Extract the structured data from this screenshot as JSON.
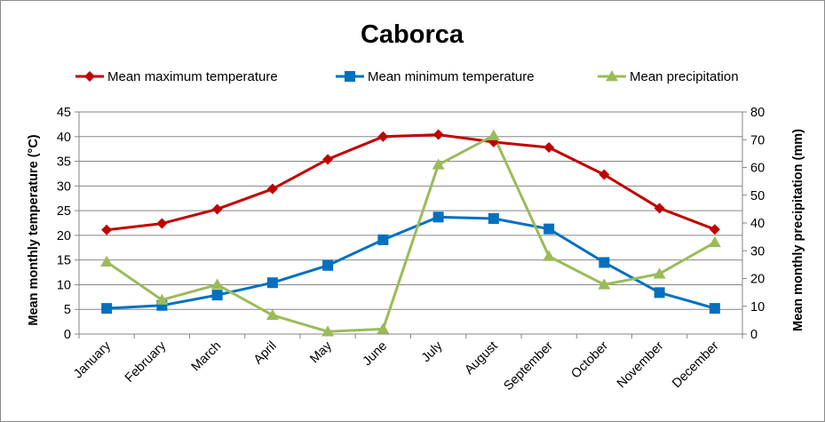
{
  "chart_data": {
    "type": "line",
    "title": "Caborca",
    "categories": [
      "January",
      "February",
      "March",
      "April",
      "May",
      "June",
      "July",
      "August",
      "September",
      "October",
      "November",
      "December"
    ],
    "ylabel_left": "Mean monthly temperature (°C)",
    "ylabel_right": "Mean monthly precipitation (mm)",
    "ylim_left": [
      0,
      45
    ],
    "yticks_left": [
      0,
      5,
      10,
      15,
      20,
      25,
      30,
      35,
      40,
      45
    ],
    "ylim_right": [
      0,
      80
    ],
    "yticks_right": [
      0,
      10,
      20,
      30,
      40,
      50,
      60,
      70,
      80
    ],
    "grid": true,
    "legend_position": "top",
    "series": [
      {
        "name": "Mean maximum temperature",
        "axis": "left",
        "color": "#c00000",
        "marker": "diamond",
        "values": [
          21.1,
          22.4,
          25.3,
          29.4,
          35.4,
          40.0,
          40.4,
          38.9,
          37.8,
          32.3,
          25.5,
          21.2
        ]
      },
      {
        "name": "Mean minimum temperature",
        "axis": "left",
        "color": "#0070c0",
        "marker": "square",
        "values": [
          5.2,
          5.8,
          7.9,
          10.4,
          13.9,
          19.1,
          23.7,
          23.4,
          21.3,
          14.5,
          8.4,
          5.2
        ]
      },
      {
        "name": "Mean precipitation",
        "axis": "right",
        "color": "#9bbb59",
        "marker": "triangle",
        "values": [
          26.0,
          12.3,
          17.8,
          6.8,
          0.9,
          1.8,
          61.0,
          71.5,
          28.0,
          17.8,
          21.7,
          33.0
        ]
      }
    ]
  }
}
